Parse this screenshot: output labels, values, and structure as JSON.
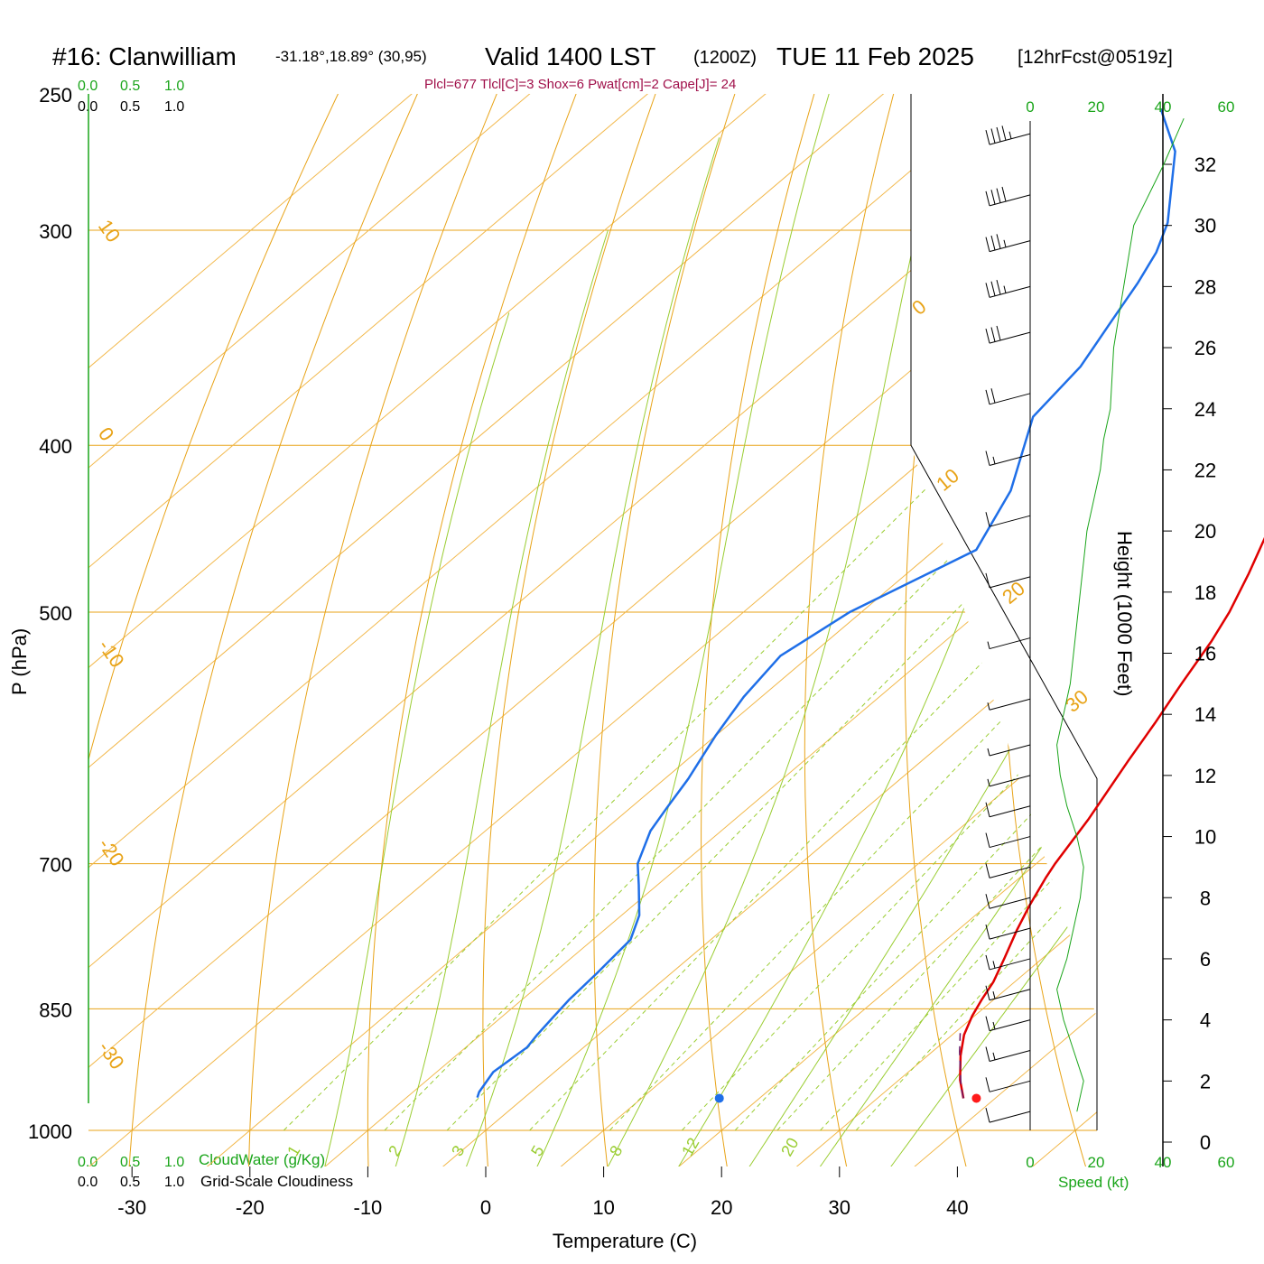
{
  "header": {
    "station": "#16: Clanwilliam",
    "coords": "-31.18°,18.89° (30,95)",
    "valid": "Valid 1400 LST",
    "zulu": "(1200Z)",
    "date": "TUE 11 Feb 2025",
    "forecast": "[12hrFcst@0519z]"
  },
  "params": "Plcl=677 Tlcl[C]=3 Shox=6 Pwat[cm]=2 Cape[J]= 24",
  "colors": {
    "isobar": "#e8a317",
    "isotherm": "#f2b84b",
    "dry_adiabat": "#e8a317",
    "moist_adiabat": "#9acd32",
    "mixing_ratio": "#9acd32",
    "temperature": "#e00000",
    "dewpoint": "#1f6fe8",
    "parcel": "#6a1b6a",
    "params_text": "#a0104a",
    "green_text": "#1aa51a",
    "wind_speed": "#1aa51a"
  },
  "scales": {
    "cloudwater_ticks": [
      "0.0",
      "0.5",
      "1.0"
    ],
    "cloudiness_ticks": [
      "0.0",
      "0.5",
      "1.0"
    ],
    "cloudwater_label": "CloudWater (g/Kg)",
    "cloudiness_label": "Grid-Scale Cloudiness",
    "speed_ticks": [
      "0",
      "20",
      "40",
      "60"
    ],
    "speed_label": "Speed (kt)"
  },
  "chart_data": {
    "type": "line",
    "xlabel": "Temperature (C)",
    "ylabel": "P (hPa)",
    "y2label": "Height (1000 Feet)",
    "xticks": [
      -30,
      -20,
      -10,
      0,
      10,
      20,
      30,
      40
    ],
    "pressure_ticks": [
      250,
      300,
      400,
      500,
      700,
      850,
      1000
    ],
    "height_ticks": [
      0,
      2,
      4,
      6,
      8,
      10,
      12,
      14,
      16,
      18,
      20,
      22,
      24,
      26,
      28,
      30,
      32
    ],
    "isotherm_labels": [
      "10",
      "0",
      "-10",
      "-20",
      "-30"
    ],
    "dry_adiabat_labels": [
      "0",
      "10",
      "20",
      "30"
    ],
    "mixing_ratio_labels": [
      "1",
      "2",
      "3",
      "5",
      "8",
      "12",
      "20"
    ],
    "series": [
      {
        "name": "temperature",
        "points": [
          [
            37.3,
            958
          ],
          [
            35.2,
            935
          ],
          [
            32.8,
            905
          ],
          [
            31.0,
            880
          ],
          [
            29.8,
            858
          ],
          [
            29.0,
            840
          ],
          [
            28.2,
            820
          ],
          [
            26.8,
            795
          ],
          [
            25.0,
            765
          ],
          [
            23.6,
            740
          ],
          [
            22.2,
            713
          ],
          [
            21.6,
            700
          ],
          [
            20.0,
            660
          ],
          [
            17.5,
            610
          ],
          [
            16.0,
            580
          ],
          [
            14.3,
            550
          ],
          [
            12.6,
            520
          ],
          [
            11.2,
            500
          ],
          [
            9.0,
            475
          ],
          [
            6.5,
            450
          ],
          [
            4.5,
            425
          ],
          [
            3.5,
            410
          ],
          [
            2.5,
            390
          ],
          [
            0.2,
            365
          ],
          [
            -2.2,
            345
          ],
          [
            -5.0,
            325
          ],
          [
            -8.0,
            308
          ],
          [
            -10.5,
            297
          ],
          [
            -14.0,
            285
          ],
          [
            -17.5,
            268
          ],
          [
            -20.5,
            255
          ]
        ]
      },
      {
        "name": "dewpoint",
        "points": [
          [
            -4.0,
            957
          ],
          [
            -4.4,
            950
          ],
          [
            -5.2,
            925
          ],
          [
            -4.8,
            895
          ],
          [
            -5.2,
            880
          ],
          [
            -5.6,
            860
          ],
          [
            -6.0,
            840
          ],
          [
            -6.3,
            810
          ],
          [
            -6.8,
            775
          ],
          [
            -8.5,
            750
          ],
          [
            -11.6,
            720
          ],
          [
            -13.8,
            700
          ],
          [
            -16.0,
            670
          ],
          [
            -16.9,
            650
          ],
          [
            -18.0,
            625
          ],
          [
            -20.0,
            590
          ],
          [
            -21.5,
            560
          ],
          [
            -22.5,
            530
          ],
          [
            -21.0,
            500
          ],
          [
            -16.5,
            460
          ],
          [
            -19.5,
            425
          ],
          [
            -25.0,
            385
          ],
          [
            -26.0,
            360
          ],
          [
            -27.8,
            340
          ],
          [
            -29.5,
            322
          ],
          [
            -31.0,
            309
          ],
          [
            -33.0,
            297
          ],
          [
            -39.5,
            270
          ],
          [
            -45.0,
            255
          ]
        ]
      },
      {
        "name": "parcel",
        "points": [
          [
            37.3,
            958
          ],
          [
            36.0,
            944
          ],
          [
            34.0,
            920
          ],
          [
            32.3,
            900
          ],
          [
            30.5,
            878
          ]
        ]
      }
    ],
    "surface_points": [
      {
        "name": "surface-temperature",
        "t": 38.4,
        "p": 958
      },
      {
        "name": "surface-dewpoint",
        "t": 16.6,
        "p": 958
      }
    ],
    "wind_speed_profile": [
      [
        14,
        1
      ],
      [
        16,
        2
      ],
      [
        13,
        3
      ],
      [
        10,
        4
      ],
      [
        8,
        5
      ],
      [
        11,
        6
      ],
      [
        13,
        7
      ],
      [
        15,
        8
      ],
      [
        16,
        9
      ],
      [
        14,
        10
      ],
      [
        11,
        11
      ],
      [
        9,
        12
      ],
      [
        8,
        13
      ],
      [
        10,
        14
      ],
      [
        12,
        15
      ],
      [
        13,
        16
      ],
      [
        14,
        17
      ],
      [
        15,
        18
      ],
      [
        16,
        19
      ],
      [
        17,
        20
      ],
      [
        19,
        21
      ],
      [
        21,
        22
      ],
      [
        22,
        23
      ],
      [
        24,
        24
      ],
      [
        25,
        26
      ],
      [
        28,
        28
      ],
      [
        31,
        30
      ],
      [
        40,
        32
      ],
      [
        46,
        33.5
      ]
    ],
    "wind_barbs": [
      {
        "h": 1.0,
        "kt": 12
      },
      {
        "h": 2.0,
        "kt": 14
      },
      {
        "h": 3.0,
        "kt": 15
      },
      {
        "h": 4.0,
        "kt": 15
      },
      {
        "h": 5.0,
        "kt": 15
      },
      {
        "h": 6.0,
        "kt": 15
      },
      {
        "h": 7.0,
        "kt": 10
      },
      {
        "h": 8.0,
        "kt": 10
      },
      {
        "h": 9.0,
        "kt": 10
      },
      {
        "h": 10.0,
        "kt": 10
      },
      {
        "h": 11.0,
        "kt": 10
      },
      {
        "h": 12.0,
        "kt": 5
      },
      {
        "h": 13.0,
        "kt": 5
      },
      {
        "h": 14.5,
        "kt": 5
      },
      {
        "h": 16.5,
        "kt": 5
      },
      {
        "h": 18.5,
        "kt": 10
      },
      {
        "h": 20.5,
        "kt": 10
      },
      {
        "h": 22.5,
        "kt": 15
      },
      {
        "h": 24.5,
        "kt": 20
      },
      {
        "h": 26.5,
        "kt": 30
      },
      {
        "h": 28.0,
        "kt": 35
      },
      {
        "h": 29.5,
        "kt": 35
      },
      {
        "h": 31.0,
        "kt": 40
      },
      {
        "h": 33.0,
        "kt": 45
      }
    ]
  }
}
